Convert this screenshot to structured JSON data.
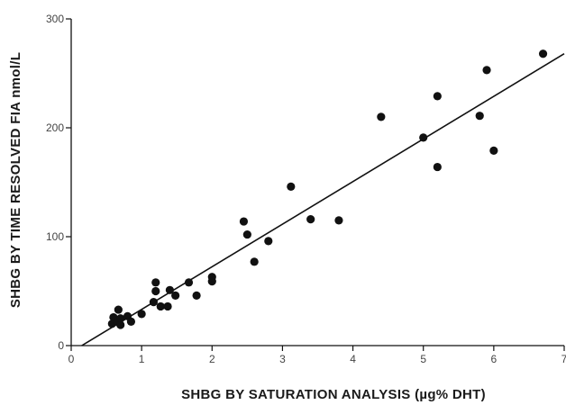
{
  "chart_data": {
    "type": "scatter",
    "title": "",
    "xlabel": "SHBG BY SATURATION ANALYSIS (µg% DHT)",
    "ylabel": "SHBG BY TIME RESOLVED FIA nmol/L",
    "xlim": [
      0,
      7
    ],
    "ylim": [
      0,
      300
    ],
    "x_ticks": [
      0,
      1,
      2,
      3,
      4,
      5,
      6,
      7
    ],
    "y_ticks": [
      0,
      100,
      200,
      300
    ],
    "grid": false,
    "legend": "none",
    "point_color": "#111111",
    "line_color": "#111111",
    "series": [
      {
        "points": [
          [
            0.58,
            20
          ],
          [
            0.6,
            26
          ],
          [
            0.65,
            22
          ],
          [
            0.67,
            33
          ],
          [
            0.7,
            25
          ],
          [
            0.7,
            19
          ],
          [
            0.8,
            27
          ],
          [
            0.85,
            22
          ],
          [
            1.0,
            29
          ],
          [
            1.17,
            40
          ],
          [
            1.2,
            50
          ],
          [
            1.2,
            58
          ],
          [
            1.27,
            36
          ],
          [
            1.37,
            36
          ],
          [
            1.4,
            51
          ],
          [
            1.48,
            46
          ],
          [
            1.67,
            58
          ],
          [
            1.78,
            46
          ],
          [
            2.0,
            59
          ],
          [
            2.0,
            63
          ],
          [
            2.45,
            114
          ],
          [
            2.5,
            102
          ],
          [
            2.6,
            77
          ],
          [
            2.8,
            96
          ],
          [
            3.12,
            146
          ],
          [
            3.4,
            116
          ],
          [
            3.8,
            115
          ],
          [
            4.4,
            210
          ],
          [
            5.0,
            191
          ],
          [
            5.2,
            229
          ],
          [
            5.2,
            164
          ],
          [
            5.8,
            211
          ],
          [
            5.9,
            253
          ],
          [
            6.0,
            179
          ],
          [
            6.7,
            268
          ]
        ]
      }
    ],
    "regression_line": {
      "x": [
        0.15,
        7.0
      ],
      "y": [
        0,
        268
      ]
    }
  }
}
